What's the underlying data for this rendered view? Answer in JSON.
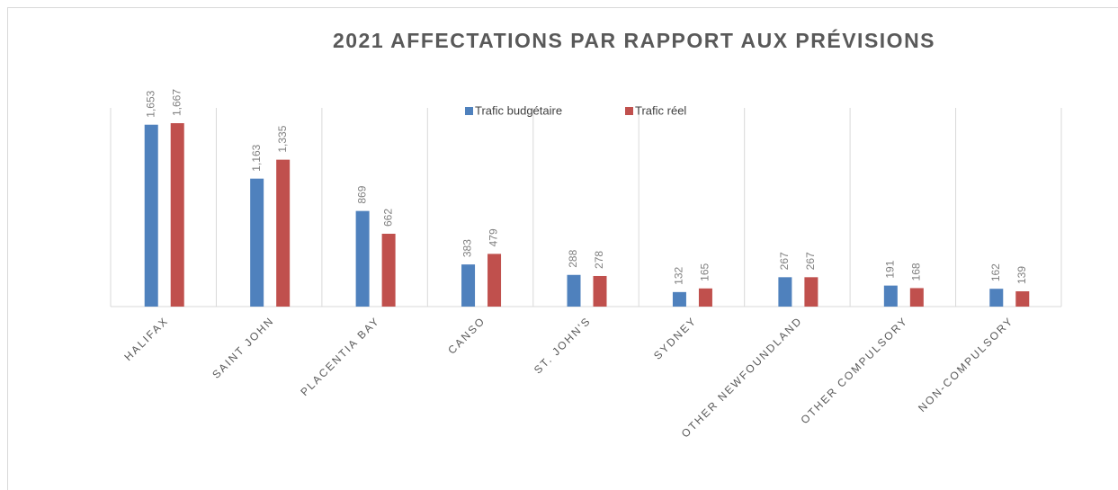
{
  "chart_data": {
    "type": "bar",
    "title": "2021 AFFECTATIONS PAR RAPPORT AUX PRÉVISIONS",
    "categories": [
      "HALIFAX",
      "SAINT JOHN",
      "PLACENTIA BAY",
      "CANSO",
      "ST. JOHN'S",
      "SYDNEY",
      "OTHER NEWFOUNDLAND",
      "OTHER COMPULSORY",
      "NON-COMPULSORY"
    ],
    "series": [
      {
        "name": "Trafic budgétaire",
        "color": "#4f81bd",
        "values": [
          1653,
          1163,
          869,
          383,
          288,
          132,
          267,
          191,
          162
        ],
        "value_labels": [
          "1,653",
          "1,163",
          "869",
          "383",
          "288",
          "132",
          "267",
          "191",
          "162"
        ]
      },
      {
        "name": "Trafic réel",
        "color": "#c0504d",
        "values": [
          1667,
          1335,
          662,
          479,
          278,
          165,
          267,
          168,
          139
        ],
        "value_labels": [
          "1,667",
          "1,335",
          "662",
          "479",
          "278",
          "165",
          "267",
          "168",
          "139"
        ]
      }
    ],
    "legend": "top"
  }
}
